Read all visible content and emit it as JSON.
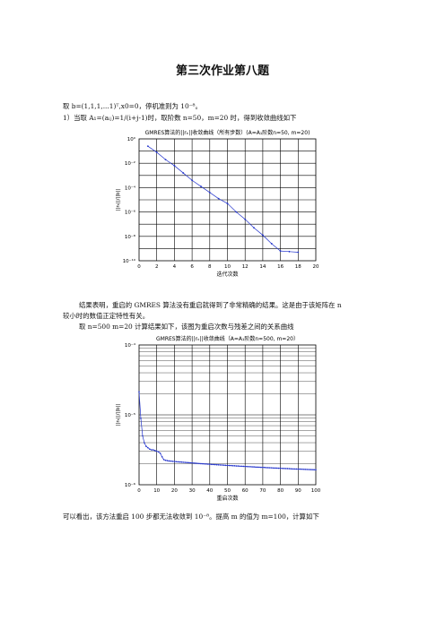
{
  "document": {
    "title": "第三次作业第八题",
    "intro": "取 b=(1,1,1,...1)ᵀ,x0=0，停机准则为 10⁻⁸。",
    "item1": "1）当取 A₁=(aᵢⱼ)=1/(i+j-1)时，取阶数 n=50，m=20 时，得到收敛曲线如下",
    "result1_line1": "结果表明，重启的 GMRES 算法没有重启就得到了非常精确的结果。这是由于该矩阵在 n",
    "result1_line2": "较小时的数值正定特性有关。",
    "item2": "取 n=500 m=20 计算结果如下，该图为重启次数与残差之间的关系曲线",
    "conclusion": "可以看出，该方法重启 100 步都无法收敛到 10⁻⁸。提高 m 的值为 m=100，计算如下"
  },
  "chart_data": [
    {
      "type": "line",
      "title": "GMRES算法的||rₖ||收敛曲线（所有步数）(A=A₁阶数n=50, m=20)",
      "xlabel": "迭代次数",
      "ylabel": "||rₖ||/||b||",
      "x_ticks": [
        "0",
        "2",
        "4",
        "6",
        "8",
        "10",
        "12",
        "14",
        "16",
        "18",
        "20"
      ],
      "y_ticks": [
        "10⁰",
        "10⁻²",
        "10⁻⁴",
        "10⁻⁶",
        "10⁻⁸",
        "10⁻¹⁰"
      ],
      "xlim": [
        0,
        20
      ],
      "ylim_log10": [
        -10,
        0
      ],
      "grid": true,
      "color": "#2233cc",
      "x": [
        1,
        2,
        3,
        4,
        5,
        6,
        7,
        8,
        9,
        10,
        11,
        12,
        13,
        14,
        15,
        16,
        17,
        18
      ],
      "y_log10": [
        -0.6,
        -1.1,
        -1.7,
        -2.2,
        -2.8,
        -3.4,
        -3.9,
        -4.4,
        -4.9,
        -5.3,
        -6.0,
        -6.6,
        -7.3,
        -7.9,
        -8.6,
        -9.2,
        -9.25,
        -9.3
      ]
    },
    {
      "type": "line",
      "title": "GMRES算法的||rₖ||收敛曲线（A=A₁阶数n=500, m=20）",
      "xlabel": "重启次数",
      "ylabel": "||rₖ||/||b||",
      "x_ticks": [
        "0",
        "10",
        "20",
        "30",
        "40",
        "50",
        "60",
        "70",
        "80",
        "90",
        "100"
      ],
      "y_ticks": [
        "10⁻⁴",
        "10⁻⁵",
        "10⁻⁶"
      ],
      "xlim": [
        0,
        100
      ],
      "ylim_log10": [
        -6,
        -4
      ],
      "grid": true,
      "color": "#2233cc",
      "x": [
        0,
        1,
        2,
        3,
        4,
        5,
        6,
        7,
        8,
        9,
        10,
        11,
        12,
        13,
        14,
        15,
        16,
        17,
        18,
        19,
        20,
        21,
        22,
        23,
        24,
        25,
        26,
        27,
        28,
        29,
        30,
        31,
        32,
        33,
        34,
        35,
        36,
        37,
        38,
        39,
        40,
        41,
        42,
        43,
        44,
        45,
        46,
        47,
        48,
        49,
        50,
        51,
        52,
        53,
        54,
        55,
        56,
        57,
        58,
        59,
        60,
        61,
        62,
        63,
        64,
        65,
        66,
        67,
        68,
        69,
        70,
        71,
        72,
        73,
        74,
        75,
        76,
        77,
        78,
        79,
        80,
        81,
        82,
        83,
        84,
        85,
        86,
        87,
        88,
        89,
        90,
        91,
        92,
        93,
        94,
        95,
        96,
        97,
        98,
        99,
        100
      ],
      "y_log10": [
        -4.67,
        -5.05,
        -5.3,
        -5.4,
        -5.45,
        -5.47,
        -5.49,
        -5.5,
        -5.5,
        -5.51,
        -5.52,
        -5.53,
        -5.55,
        -5.6,
        -5.64,
        -5.65,
        -5.655,
        -5.66,
        -5.662,
        -5.665,
        -5.667,
        -5.67,
        -5.672,
        -5.674,
        -5.676,
        -5.678,
        -5.68,
        -5.682,
        -5.684,
        -5.686,
        -5.688,
        -5.69,
        -5.692,
        -5.694,
        -5.696,
        -5.698,
        -5.7,
        -5.702,
        -5.703,
        -5.705,
        -5.707,
        -5.709,
        -5.71,
        -5.712,
        -5.714,
        -5.715,
        -5.717,
        -5.718,
        -5.72,
        -5.722,
        -5.723,
        -5.725,
        -5.726,
        -5.728,
        -5.729,
        -5.731,
        -5.732,
        -5.734,
        -5.735,
        -5.737,
        -5.738,
        -5.74,
        -5.741,
        -5.742,
        -5.744,
        -5.745,
        -5.747,
        -5.748,
        -5.749,
        -5.751,
        -5.752,
        -5.753,
        -5.755,
        -5.756,
        -5.757,
        -5.758,
        -5.76,
        -5.761,
        -5.762,
        -5.763,
        -5.765,
        -5.766,
        -5.767,
        -5.768,
        -5.769,
        -5.77,
        -5.772,
        -5.773,
        -5.774,
        -5.775,
        -5.776,
        -5.777,
        -5.778,
        -5.779,
        -5.78,
        -5.781,
        -5.782,
        -5.783,
        -5.784,
        -5.785,
        -5.786
      ]
    }
  ]
}
